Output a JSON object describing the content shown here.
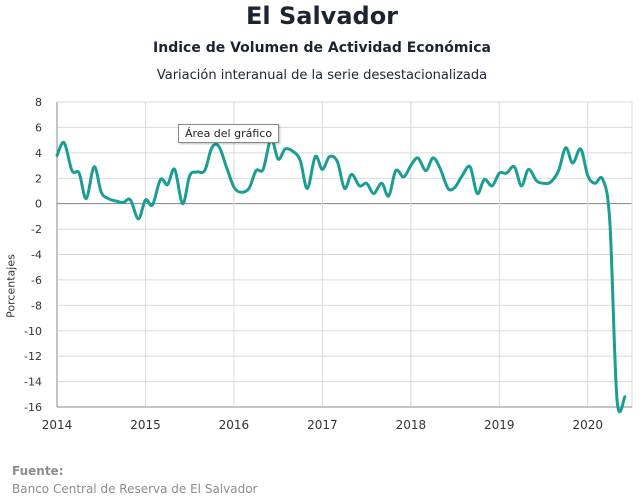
{
  "header": {
    "title": "El Salvador",
    "subtitle": "Indice de Volumen de  Actividad Económica",
    "subtitle2": "Variación interanual de la serie desestacionalizada"
  },
  "tooltip": "Área del gráfico",
  "source": {
    "label": "Fuente:",
    "text": "Banco Central de Reserva de El Salvador"
  },
  "colors": {
    "line": "#1a9e94",
    "grid": "#d9d9d9",
    "zero": "#808080"
  },
  "chart_data": {
    "type": "line",
    "title": "El Salvador",
    "ylabel": "Porcentajes",
    "xlabel": "",
    "ylim": [
      -16,
      8
    ],
    "xlim": [
      2014,
      2020.5
    ],
    "grid": true,
    "x_ticks": [
      "2014",
      "2015",
      "2016",
      "2017",
      "2018",
      "2019",
      "2020"
    ],
    "y_ticks": [
      "8",
      "6",
      "4",
      "2",
      "0",
      "-2",
      "-4",
      "-6",
      "-8",
      "-10",
      "-12",
      "-14",
      "-16"
    ],
    "series": [
      {
        "points": [
          [
            2014.0,
            3.8
          ],
          [
            2014.08,
            4.8
          ],
          [
            2014.17,
            2.6
          ],
          [
            2014.25,
            2.4
          ],
          [
            2014.33,
            0.4
          ],
          [
            2014.42,
            2.9
          ],
          [
            2014.5,
            0.9
          ],
          [
            2014.58,
            0.4
          ],
          [
            2014.67,
            0.2
          ],
          [
            2014.75,
            0.1
          ],
          [
            2014.83,
            0.3
          ],
          [
            2014.92,
            -1.2
          ],
          [
            2015.0,
            0.3
          ],
          [
            2015.08,
            -0.1
          ],
          [
            2015.17,
            1.9
          ],
          [
            2015.25,
            1.5
          ],
          [
            2015.33,
            2.7
          ],
          [
            2015.42,
            0.0
          ],
          [
            2015.5,
            2.2
          ],
          [
            2015.58,
            2.5
          ],
          [
            2015.67,
            2.6
          ],
          [
            2015.75,
            4.4
          ],
          [
            2015.83,
            4.5
          ],
          [
            2015.92,
            2.8
          ],
          [
            2016.0,
            1.3
          ],
          [
            2016.08,
            0.9
          ],
          [
            2016.17,
            1.2
          ],
          [
            2016.25,
            2.6
          ],
          [
            2016.33,
            2.7
          ],
          [
            2016.42,
            5.1
          ],
          [
            2016.5,
            3.5
          ],
          [
            2016.58,
            4.3
          ],
          [
            2016.67,
            4.1
          ],
          [
            2016.75,
            3.4
          ],
          [
            2016.83,
            1.2
          ],
          [
            2016.92,
            3.7
          ],
          [
            2017.0,
            2.7
          ],
          [
            2017.08,
            3.7
          ],
          [
            2017.17,
            3.3
          ],
          [
            2017.25,
            1.2
          ],
          [
            2017.33,
            2.3
          ],
          [
            2017.42,
            1.4
          ],
          [
            2017.5,
            1.6
          ],
          [
            2017.58,
            0.8
          ],
          [
            2017.67,
            1.6
          ],
          [
            2017.75,
            0.6
          ],
          [
            2017.83,
            2.6
          ],
          [
            2017.92,
            2.1
          ],
          [
            2018.0,
            3.0
          ],
          [
            2018.08,
            3.6
          ],
          [
            2018.17,
            2.6
          ],
          [
            2018.25,
            3.6
          ],
          [
            2018.33,
            2.8
          ],
          [
            2018.42,
            1.2
          ],
          [
            2018.5,
            1.3
          ],
          [
            2018.58,
            2.2
          ],
          [
            2018.67,
            2.9
          ],
          [
            2018.75,
            0.8
          ],
          [
            2018.83,
            1.9
          ],
          [
            2018.92,
            1.4
          ],
          [
            2019.0,
            2.4
          ],
          [
            2019.08,
            2.4
          ],
          [
            2019.17,
            2.9
          ],
          [
            2019.25,
            1.4
          ],
          [
            2019.33,
            2.7
          ],
          [
            2019.42,
            1.8
          ],
          [
            2019.5,
            1.6
          ],
          [
            2019.58,
            1.7
          ],
          [
            2019.67,
            2.6
          ],
          [
            2019.75,
            4.4
          ],
          [
            2019.83,
            3.2
          ],
          [
            2019.92,
            4.3
          ],
          [
            2020.0,
            2.2
          ],
          [
            2020.08,
            1.6
          ],
          [
            2020.17,
            1.9
          ],
          [
            2020.25,
            -1.5
          ],
          [
            2020.33,
            -15.4
          ],
          [
            2020.42,
            -15.2
          ]
        ]
      }
    ]
  }
}
